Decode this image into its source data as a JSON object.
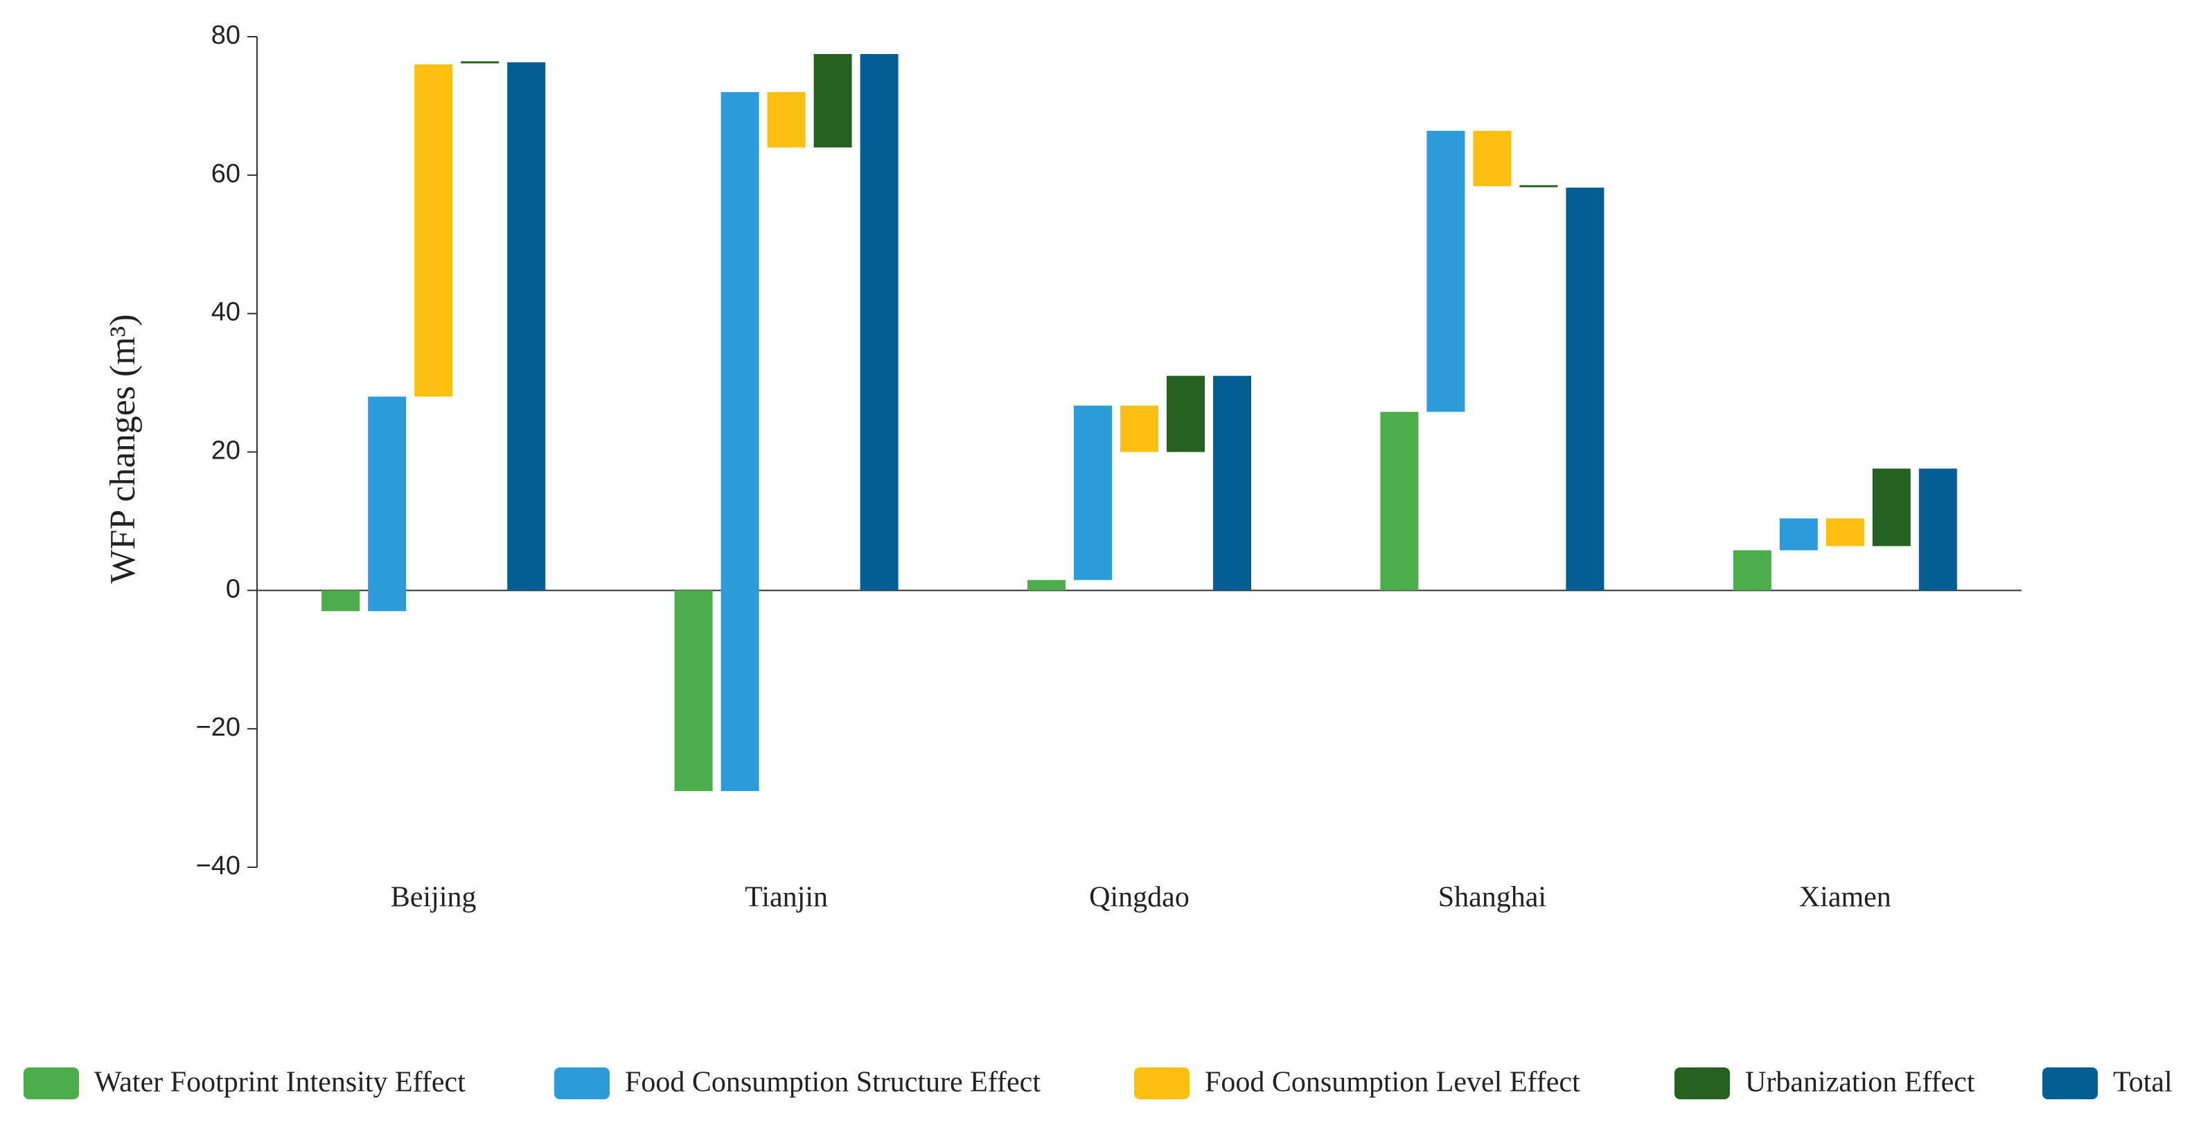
{
  "chart_data": {
    "type": "waterfall",
    "ylabel": "WFP changes (m³)",
    "categories": [
      "Beijing",
      "Tianjin",
      "Qingdao",
      "Shanghai",
      "Xiamen"
    ],
    "series": [
      {
        "name": "Water Footprint Intensity Effect",
        "color": "#4cae4a",
        "values": [
          -3,
          -29,
          1.5,
          25.8,
          5.8
        ]
      },
      {
        "name": "Food Consumption Structure Effect",
        "color": "#2b9cd9",
        "values": [
          31,
          101,
          25.2,
          40.6,
          4.6
        ]
      },
      {
        "name": "Food Consumption Level Effect",
        "color": "#fdc010",
        "values": [
          48,
          -8,
          -6.7,
          -8,
          -4
        ]
      },
      {
        "name": "Urbanization Effect",
        "color": "#26621f",
        "values": [
          0.3,
          13.5,
          11,
          -0.2,
          11.2
        ]
      },
      {
        "name": "Total",
        "color": "#035e94",
        "values": [
          76.3,
          77.5,
          31,
          58.2,
          17.6
        ]
      }
    ],
    "ylim": [
      -40,
      80
    ],
    "yticks": [
      {
        "value": -40,
        "label": "−40"
      },
      {
        "value": -20,
        "label": "−20"
      },
      0,
      20,
      40,
      60,
      80
    ],
    "grid": false,
    "legend": "bottom"
  }
}
